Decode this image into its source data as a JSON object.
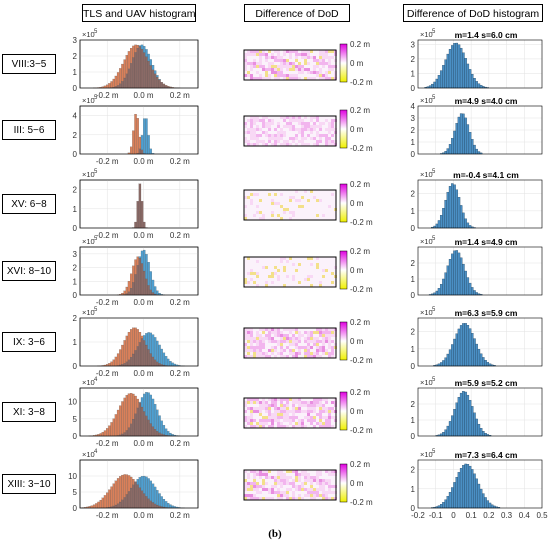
{
  "headers": {
    "col1": "TLS and UAV histogram",
    "col2": "Difference of DoD",
    "col3": "Difference of DoD histogram"
  },
  "caption": "(b)",
  "colors": {
    "tls": "#d9805a",
    "uav": "#4f9fd0",
    "overlap": "#8a6a66",
    "diff": "#4a8fc4"
  },
  "chart_data": [
    {
      "type": "bar",
      "row_label": "VIII:3−5",
      "x_ticks": [
        "-0.2 m",
        "0.0 m",
        "0.2 m"
      ],
      "y_ticks": [
        "0",
        "1",
        "2",
        "3"
      ],
      "exponent_label": "×10",
      "exponent": "5",
      "tls_mean": -0.04,
      "tls_sd": 0.07,
      "tls_peak": 2.7,
      "uav_mean": -0.01,
      "uav_sd": 0.055,
      "uav_peak": 2.7,
      "ylim": [
        0,
        3
      ],
      "xlim": [
        -0.35,
        0.3
      ],
      "dod_colorbar_ticks": [
        "0.2 m",
        "0 m",
        "-0.2 m"
      ],
      "dod_pattern": "striped",
      "diff_title": "m=1.4 s=6.0 cm",
      "diff_mean": 0.014,
      "diff_sd": 0.06,
      "diff_peak": 3.1,
      "diff_x_ticks": [],
      "diff_y_ticks": [
        "0",
        "1",
        "2",
        "3"
      ],
      "diff_exponent": "5",
      "diff_ylim": [
        0,
        3.3
      ]
    },
    {
      "type": "bar",
      "row_label": "III: 5−6",
      "x_ticks": [
        "-0.2 m",
        "0.0 m",
        "0.2 m"
      ],
      "y_ticks": [
        "0",
        "2",
        "4"
      ],
      "exponent_label": "×10",
      "exponent": "5",
      "tls_mean": -0.04,
      "tls_sd": 0.015,
      "tls_peak": 4.3,
      "uav_mean": 0.01,
      "uav_sd": 0.015,
      "uav_peak": 4.0,
      "ylim": [
        0,
        5
      ],
      "xlim": [
        -0.35,
        0.3
      ],
      "dod_colorbar_ticks": [
        "0.2 m",
        "0 m",
        "-0.2 m"
      ],
      "dod_pattern": "uniform",
      "diff_title": "m=4.9 s=4.0 cm",
      "diff_mean": 0.049,
      "diff_sd": 0.04,
      "diff_peak": 3.4,
      "diff_x_ticks": [],
      "diff_y_ticks": [
        "0",
        "1",
        "2",
        "3",
        "4"
      ],
      "diff_exponent": "5",
      "diff_ylim": [
        0,
        4
      ]
    },
    {
      "type": "bar",
      "row_label": "XV: 6−8",
      "x_ticks": [
        "-0.2 m",
        "0.0 m",
        "0.2 m"
      ],
      "y_ticks": [
        "0",
        "1",
        "2"
      ],
      "exponent_label": "×10",
      "exponent": "5",
      "tls_mean": -0.02,
      "tls_sd": 0.012,
      "tls_peak": 2.3,
      "uav_mean": -0.02,
      "uav_sd": 0.012,
      "uav_peak": 2.3,
      "ylim": [
        0,
        2.5
      ],
      "xlim": [
        -0.35,
        0.3
      ],
      "dod_colorbar_ticks": [
        "0.2 m",
        "0 m",
        "-0.2 m"
      ],
      "dod_pattern": "faint",
      "diff_title": "m=-0.4 s=4.1 cm",
      "diff_mean": -0.004,
      "diff_sd": 0.041,
      "diff_peak": 2.6,
      "diff_x_ticks": [],
      "diff_y_ticks": [
        "0",
        "1",
        "2"
      ],
      "diff_exponent": "5",
      "diff_ylim": [
        0,
        2.8
      ]
    },
    {
      "type": "bar",
      "row_label": "XVI: 8−10",
      "x_ticks": [
        "-0.2 m",
        "0.0 m",
        "0.2 m"
      ],
      "y_ticks": [
        "0",
        "1",
        "2",
        "3"
      ],
      "exponent_label": "×10",
      "exponent": "5",
      "tls_mean": -0.03,
      "tls_sd": 0.035,
      "tls_peak": 2.8,
      "uav_mean": 0.0,
      "uav_sd": 0.035,
      "uav_peak": 3.3,
      "ylim": [
        0,
        3.5
      ],
      "xlim": [
        -0.35,
        0.3
      ],
      "dod_colorbar_ticks": [
        "0.2 m",
        "0 m",
        "-0.2 m"
      ],
      "dod_pattern": "faint",
      "diff_title": "m=1.4 s=4.9 cm",
      "diff_mean": 0.014,
      "diff_sd": 0.049,
      "diff_peak": 2.8,
      "diff_x_ticks": [],
      "diff_y_ticks": [
        "0",
        "1",
        "2"
      ],
      "diff_exponent": "5",
      "diff_ylim": [
        0,
        3
      ]
    },
    {
      "type": "bar",
      "row_label": "IX: 3−6",
      "x_ticks": [
        "-0.2 m",
        "0.0 m",
        "0.2 m"
      ],
      "y_ticks": [
        "0",
        "1",
        "2"
      ],
      "exponent_label": "×10",
      "exponent": "5",
      "tls_mean": -0.05,
      "tls_sd": 0.06,
      "tls_peak": 1.6,
      "uav_mean": 0.03,
      "uav_sd": 0.06,
      "uav_peak": 1.4,
      "ylim": [
        0,
        2
      ],
      "xlim": [
        -0.35,
        0.3
      ],
      "dod_colorbar_ticks": [
        "0.2 m",
        "0 m",
        "-0.2 m"
      ],
      "dod_pattern": "dense",
      "diff_title": "m=6.3 s=5.9 cm",
      "diff_mean": 0.063,
      "diff_sd": 0.059,
      "diff_peak": 2.5,
      "diff_x_ticks": [],
      "diff_y_ticks": [
        "0",
        "1",
        "2"
      ],
      "diff_exponent": "5",
      "diff_ylim": [
        0,
        2.8
      ]
    },
    {
      "type": "bar",
      "row_label": "XI: 3−8",
      "x_ticks": [
        "-0.2 m",
        "0.0 m",
        "0.2 m"
      ],
      "y_ticks": [
        "0",
        "5",
        "10"
      ],
      "exponent_label": "×10",
      "exponent": "4",
      "tls_mean": -0.07,
      "tls_sd": 0.07,
      "tls_peak": 12.5,
      "uav_mean": 0.02,
      "uav_sd": 0.055,
      "uav_peak": 12.8,
      "ylim": [
        0,
        14
      ],
      "xlim": [
        -0.35,
        0.3
      ],
      "dod_colorbar_ticks": [
        "0.2 m",
        "0 m",
        "-0.2 m"
      ],
      "dod_pattern": "dense",
      "diff_title": "m=5.9 s=5.2 cm",
      "diff_mean": 0.059,
      "diff_sd": 0.052,
      "diff_peak": 2.8,
      "diff_x_ticks": [],
      "diff_y_ticks": [
        "0",
        "1",
        "2"
      ],
      "diff_exponent": "5",
      "diff_ylim": [
        0,
        3
      ]
    },
    {
      "type": "bar",
      "row_label": "XIII: 3−10",
      "x_ticks": [
        "-0.2 m",
        "0.0 m",
        "0.2 m"
      ],
      "y_ticks": [
        "0",
        "5",
        "10"
      ],
      "exponent_label": "×10",
      "exponent": "4",
      "tls_mean": -0.1,
      "tls_sd": 0.08,
      "tls_peak": 10.5,
      "uav_mean": 0.0,
      "uav_sd": 0.07,
      "uav_peak": 10.0,
      "ylim": [
        0,
        15
      ],
      "xlim": [
        -0.35,
        0.3
      ],
      "dod_colorbar_ticks": [
        "0.2 m",
        "0 m",
        "-0.2 m"
      ],
      "dod_pattern": "striped",
      "diff_title": "m=7.3 s=6.4 cm",
      "diff_mean": 0.073,
      "diff_sd": 0.064,
      "diff_peak": 2.3,
      "diff_x_ticks": [
        "-0.2",
        "-0.1",
        "0",
        "0.1",
        "0.2",
        "0.3",
        "0.4",
        "0.5"
      ],
      "diff_y_ticks": [
        "0",
        "1",
        "2"
      ],
      "diff_exponent": "5",
      "diff_ylim": [
        0,
        2.5
      ]
    }
  ]
}
